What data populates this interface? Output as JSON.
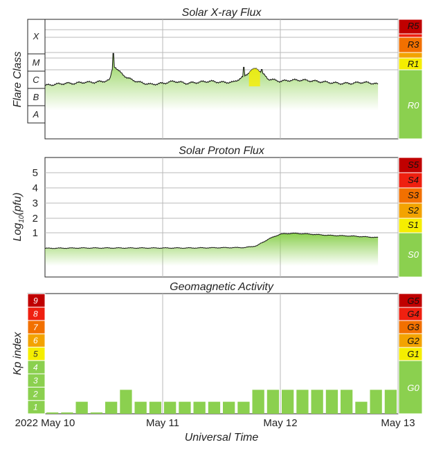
{
  "colors": {
    "green": "#8bd04f",
    "yellow": "#f5ee00",
    "orange": "#f3a300",
    "red_orange": "#f27000",
    "red": "#ef2010",
    "dark_red": "#c00000",
    "grid": "#b8b8b8",
    "frame": "#222222"
  },
  "chart_data": [
    {
      "type": "line",
      "title": "Solar X-ray Flux",
      "ylabel": "Flare Class",
      "flare_classes": [
        "X",
        "M",
        "C",
        "B",
        "A"
      ],
      "scale_labels": [
        "R5",
        "R3",
        "R1",
        "R0"
      ],
      "x_range_days": [
        0,
        3
      ],
      "data_end_day": 2.83,
      "x": [
        0,
        0.08,
        0.17,
        0.25,
        0.33,
        0.42,
        0.5,
        0.55,
        0.58,
        0.6,
        0.62,
        0.7,
        0.8,
        0.9,
        1.0,
        1.1,
        1.2,
        1.3,
        1.4,
        1.5,
        1.6,
        1.7,
        1.75,
        1.8,
        1.85,
        1.9,
        2.0,
        2.1,
        2.2,
        2.3,
        2.4,
        2.5,
        2.6,
        2.7,
        2.8,
        2.83
      ],
      "values": [
        -6.25,
        -6.2,
        -6.15,
        -6.15,
        -6.1,
        -6.1,
        -6.05,
        -6.0,
        -5.3,
        -5.4,
        -5.55,
        -5.9,
        -6.1,
        -6.2,
        -6.15,
        -6.05,
        -6.15,
        -6.1,
        -6.05,
        -6.1,
        -6.1,
        -5.8,
        -5.55,
        -5.45,
        -5.7,
        -5.95,
        -6.05,
        -6.0,
        -6.0,
        -6.05,
        -6.1,
        -6.15,
        -6.15,
        -6.1,
        -6.15,
        -6.2
      ],
      "peaks": [
        {
          "x": 0.58,
          "y": -4.75
        },
        {
          "x": 1.69,
          "y": -5.4
        },
        {
          "x": 1.84,
          "y": -5.5
        }
      ]
    },
    {
      "type": "line",
      "title": "Solar Proton Flux",
      "ylabel": "Log10(pfu)",
      "y_ticks": [
        "1",
        "2",
        "3",
        "4",
        "5"
      ],
      "scale_labels": [
        "S5",
        "S4",
        "S3",
        "S2",
        "S1",
        "S0"
      ],
      "x_range_days": [
        0,
        3
      ],
      "data_end_day": 2.83,
      "x": [
        0,
        0.3,
        0.6,
        0.9,
        1.2,
        1.5,
        1.7,
        1.8,
        1.9,
        2.0,
        2.1,
        2.2,
        2.4,
        2.6,
        2.83
      ],
      "values": [
        -0.02,
        0.0,
        0.0,
        0.0,
        0.0,
        0.02,
        0.03,
        0.15,
        0.6,
        0.93,
        0.98,
        0.95,
        0.85,
        0.8,
        0.7
      ]
    },
    {
      "type": "bar",
      "title": "Geomagnetic Activity",
      "ylabel": "Kp index",
      "xlabel": "Universal Time",
      "kp_levels": [
        "1",
        "2",
        "3",
        "4",
        "5",
        "6",
        "7",
        "8",
        "9"
      ],
      "scale_labels": [
        "G5",
        "G4",
        "G3",
        "G2",
        "G1",
        "G0"
      ],
      "x_labels": [
        "2022 May 10",
        "May 11",
        "May 12",
        "May 13"
      ],
      "values": [
        0.1,
        0.1,
        0.9,
        0.1,
        0.9,
        1.8,
        0.9,
        0.9,
        0.9,
        0.9,
        0.9,
        0.9,
        0.9,
        0.9,
        1.8,
        1.8,
        1.8,
        1.8,
        1.8,
        1.8,
        1.8,
        0.9,
        1.8,
        1.8
      ]
    }
  ]
}
